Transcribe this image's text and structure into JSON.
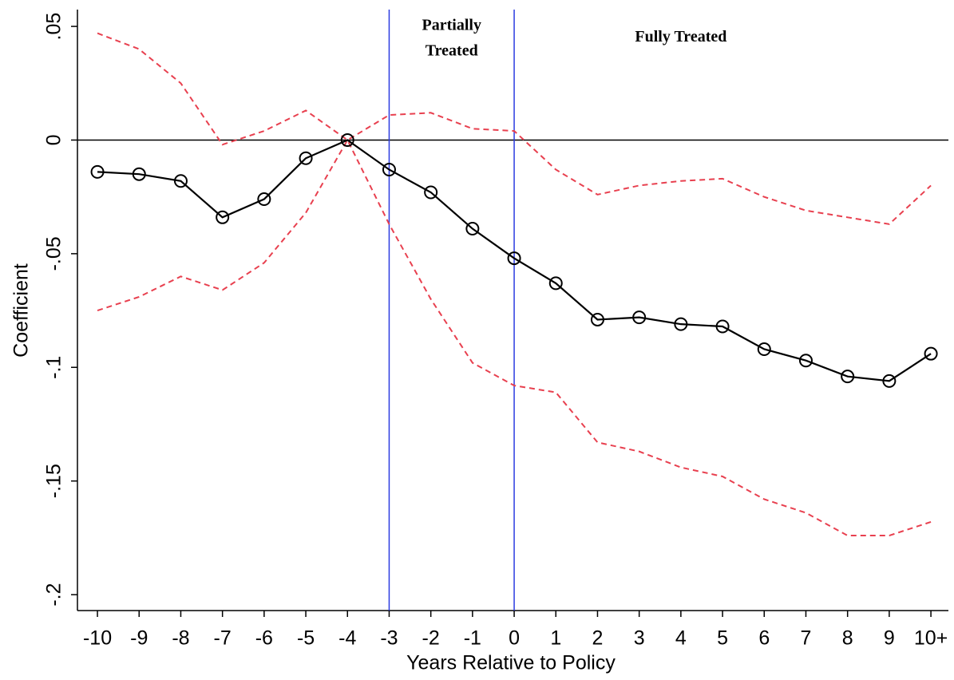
{
  "chart_data": {
    "type": "line",
    "x_label": "Years Relative to Policy",
    "y_label": "Coefficient",
    "x": [
      -10,
      -9,
      -8,
      -7,
      -6,
      -5,
      -4,
      -3,
      -2,
      -1,
      0,
      1,
      2,
      3,
      4,
      5,
      6,
      7,
      8,
      9,
      10
    ],
    "series": [
      {
        "color": "#e8404f",
        "dash": true,
        "markers": false,
        "values": [
          0.047,
          0.04,
          0.025,
          -0.002,
          0.004,
          0.013,
          0,
          0.011,
          0.012,
          0.005,
          0.004,
          -0.013,
          -0.024,
          -0.02,
          -0.018,
          -0.017,
          -0.025,
          -0.031,
          -0.034,
          -0.037,
          -0.02
        ]
      },
      {
        "color": "#e8404f",
        "dash": true,
        "markers": false,
        "values": [
          -0.075,
          -0.069,
          -0.06,
          -0.066,
          -0.054,
          -0.032,
          0,
          -0.037,
          -0.07,
          -0.098,
          -0.108,
          -0.111,
          -0.133,
          -0.137,
          -0.144,
          -0.148,
          -0.158,
          -0.164,
          -0.174,
          -0.174,
          -0.168
        ]
      },
      {
        "color": "#000000",
        "dash": false,
        "markers": true,
        "values": [
          -0.014,
          -0.015,
          -0.018,
          -0.034,
          -0.026,
          -0.008,
          0,
          -0.013,
          -0.023,
          -0.039,
          -0.052,
          -0.063,
          -0.079,
          -0.078,
          -0.081,
          -0.082,
          -0.092,
          -0.097,
          -0.104,
          -0.106,
          -0.094
        ]
      }
    ],
    "xlim": [
      -10.48,
      10.42
    ],
    "xticks": [
      -10,
      -9,
      -8,
      -7,
      -6,
      -5,
      -4,
      -3,
      -2,
      -1,
      0,
      1,
      2,
      3,
      4,
      5,
      6,
      7,
      8,
      9,
      {
        "value": 10,
        "label": "10+"
      }
    ],
    "ylim": [
      -0.207,
      0.0574
    ],
    "yticks": [
      {
        "value": 0.05,
        "label": ".05"
      },
      0,
      {
        "value": -0.05,
        "label": "-.05"
      },
      {
        "value": -0.1,
        "label": "-.1"
      },
      {
        "value": -0.15,
        "label": "-.15"
      },
      {
        "value": -0.2,
        "label": "-.2"
      }
    ],
    "hline": 0,
    "vlines": [
      -3,
      0
    ],
    "vline_color": "#2b3be0",
    "annotations": [
      {
        "lines": [
          "Partially",
          "Treated"
        ],
        "x": -1.5,
        "y": 0.05
      },
      {
        "lines": [
          "Fully Treated"
        ],
        "x": 4,
        "y": 0.045
      }
    ]
  }
}
